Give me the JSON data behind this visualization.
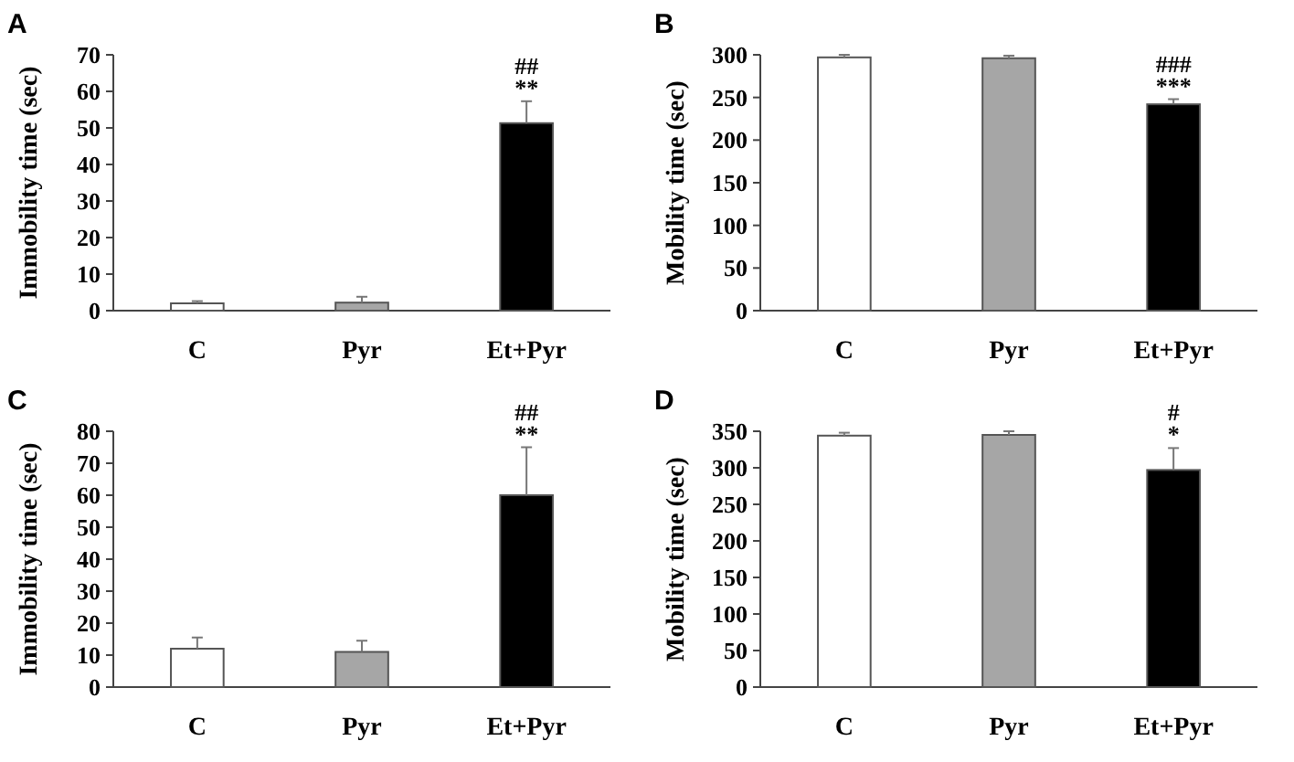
{
  "chart_data": [
    {
      "type": "bar",
      "title": "A",
      "ylabel": "Immobility time (sec)",
      "categories": [
        "C",
        "Pyr",
        "Et+Pyr"
      ],
      "values": [
        2,
        2.2,
        51.3
      ],
      "errors": [
        0.6,
        1.6,
        6
      ],
      "colors": [
        "#ffffff",
        "#a6a6a6",
        "#000000"
      ],
      "ylim": [
        0,
        70
      ],
      "yticks": [
        0,
        10,
        20,
        30,
        40,
        50,
        60,
        70
      ],
      "annotations": [
        {
          "text": "##",
          "x": "Et+Pyr",
          "y": 57.3
        },
        {
          "text": "**",
          "x": "Et+Pyr",
          "y": 57.3
        }
      ]
    },
    {
      "type": "bar",
      "title": "B",
      "ylabel": "Mobility time (sec)",
      "categories": [
        "C",
        "Pyr",
        "Et+Pyr"
      ],
      "values": [
        297,
        296,
        242
      ],
      "errors": [
        3,
        3,
        6
      ],
      "colors": [
        "#ffffff",
        "#a6a6a6",
        "#000000"
      ],
      "ylim": [
        0,
        300
      ],
      "yticks": [
        0,
        50,
        100,
        150,
        200,
        250,
        300
      ],
      "annotations": [
        {
          "text": "###",
          "x": "Et+Pyr",
          "y": 248
        },
        {
          "text": "***",
          "x": "Et+Pyr",
          "y": 248
        }
      ]
    },
    {
      "type": "bar",
      "title": "C",
      "ylabel": "Immobility time (sec)",
      "categories": [
        "C",
        "Pyr",
        "Et+Pyr"
      ],
      "values": [
        12,
        11,
        60
      ],
      "errors": [
        3.5,
        3.5,
        15
      ],
      "colors": [
        "#ffffff",
        "#a6a6a6",
        "#000000"
      ],
      "ylim": [
        0,
        80
      ],
      "yticks": [
        0,
        10,
        20,
        30,
        40,
        50,
        60,
        70,
        80
      ],
      "annotations": [
        {
          "text": "##",
          "x": "Et+Pyr",
          "y": 75
        },
        {
          "text": "**",
          "x": "Et+Pyr",
          "y": 75
        }
      ]
    },
    {
      "type": "bar",
      "title": "D",
      "ylabel": "Mobility time (sec)",
      "categories": [
        "C",
        "Pyr",
        "Et+Pyr"
      ],
      "values": [
        344,
        345,
        297
      ],
      "errors": [
        4,
        5,
        30
      ],
      "colors": [
        "#ffffff",
        "#a6a6a6",
        "#000000"
      ],
      "ylim": [
        0,
        350
      ],
      "yticks": [
        0,
        50,
        100,
        150,
        200,
        250,
        300,
        350
      ],
      "annotations": [
        {
          "text": "#",
          "x": "Et+Pyr",
          "y": 327
        },
        {
          "text": "*",
          "x": "Et+Pyr",
          "y": 327
        }
      ]
    }
  ]
}
